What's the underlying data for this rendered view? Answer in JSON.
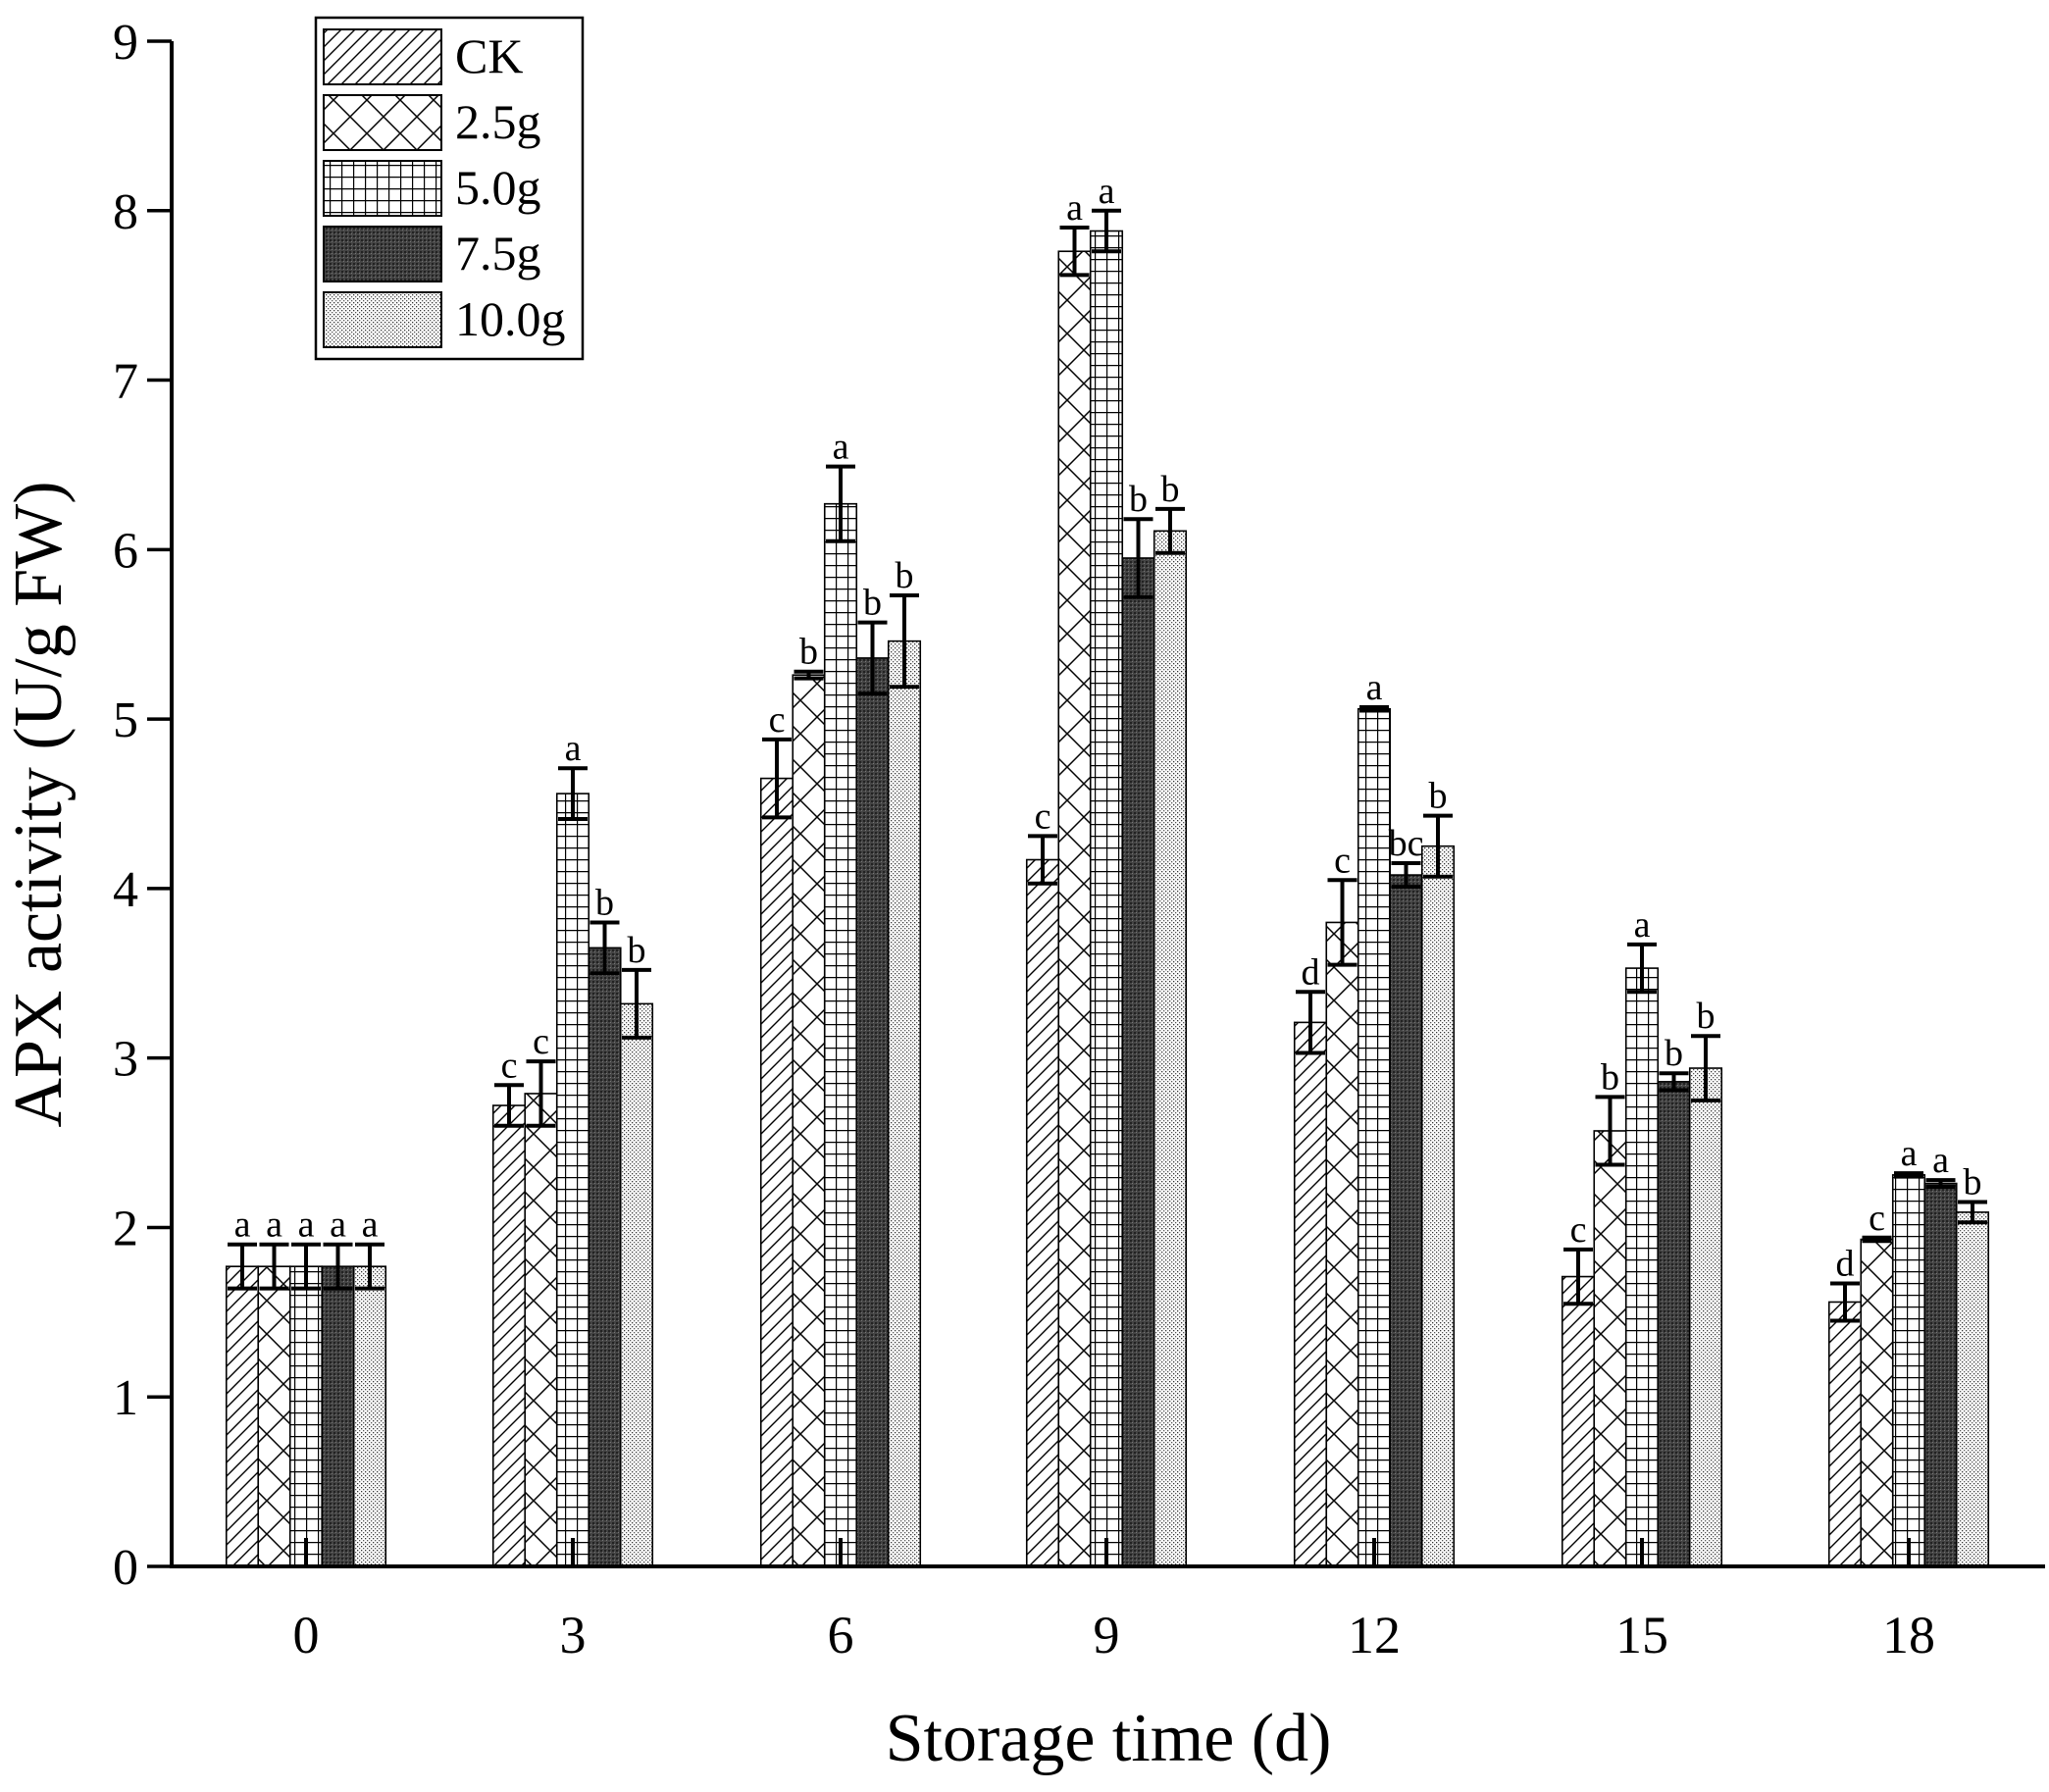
{
  "chart_data": {
    "type": "bar",
    "xlabel": "Storage time (d)",
    "ylabel": "APX activity (U/g FW)",
    "ylim": [
      0,
      9
    ],
    "yticks": [
      "0",
      "1",
      "2",
      "3",
      "4",
      "5",
      "6",
      "7",
      "8",
      "9"
    ],
    "categories": [
      "0",
      "3",
      "6",
      "9",
      "12",
      "15",
      "18"
    ],
    "legend_position": "top-left",
    "series": [
      {
        "name": "CK",
        "pattern": "diagonal",
        "values": [
          1.77,
          2.72,
          4.65,
          4.17,
          3.21,
          1.71,
          1.56
        ],
        "errors": [
          0.13,
          0.12,
          0.23,
          0.14,
          0.18,
          0.16,
          0.11
        ],
        "letters": [
          "a",
          "c",
          "c",
          "c",
          "d",
          "c",
          "d"
        ]
      },
      {
        "name": "2.5g",
        "pattern": "crosshatch",
        "values": [
          1.77,
          2.79,
          5.26,
          7.76,
          3.8,
          2.57,
          1.93
        ],
        "errors": [
          0.13,
          0.19,
          0.02,
          0.14,
          0.25,
          0.2,
          0.01
        ],
        "letters": [
          "a",
          "c",
          "b",
          "a",
          "c",
          "b",
          "c"
        ]
      },
      {
        "name": "5.0g",
        "pattern": "grid",
        "values": [
          1.77,
          4.56,
          6.27,
          7.88,
          5.06,
          3.53,
          2.31
        ],
        "errors": [
          0.13,
          0.15,
          0.22,
          0.12,
          0.01,
          0.14,
          0.01
        ],
        "letters": [
          "a",
          "a",
          "a",
          "a",
          "a",
          "a",
          "a"
        ]
      },
      {
        "name": "7.5g",
        "pattern": "dark",
        "values": [
          1.77,
          3.65,
          5.36,
          5.95,
          4.08,
          2.86,
          2.26
        ],
        "errors": [
          0.13,
          0.15,
          0.21,
          0.23,
          0.07,
          0.05,
          0.02
        ],
        "letters": [
          "a",
          "b",
          "b",
          "b",
          "bc",
          "b",
          "a"
        ]
      },
      {
        "name": "10.0g",
        "pattern": "dots",
        "values": [
          1.77,
          3.32,
          5.46,
          6.11,
          4.25,
          2.94,
          2.09
        ],
        "errors": [
          0.13,
          0.2,
          0.27,
          0.13,
          0.18,
          0.19,
          0.06
        ],
        "letters": [
          "a",
          "b",
          "b",
          "b",
          "b",
          "b",
          "b"
        ]
      }
    ]
  }
}
